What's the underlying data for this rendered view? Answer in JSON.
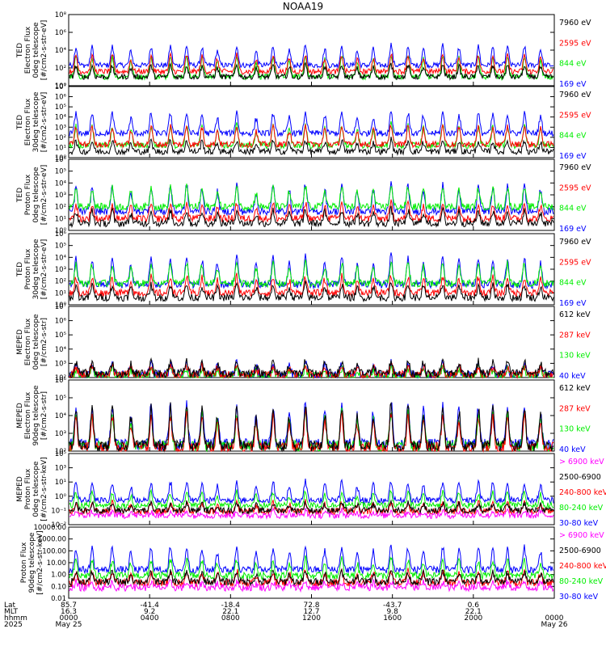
{
  "title": "NOAA19",
  "colors": {
    "blue": "#0000ff",
    "red": "#ff0000",
    "green": "#00ee00",
    "black": "#000000",
    "magenta": "#ff00ff"
  },
  "chart_data": [
    {
      "type": "line",
      "ylabel": [
        "TED",
        "Electron Flux",
        "0deg telescope",
        "[#/cm2-s-str-eV]"
      ],
      "ytick_labels": [
        "10⁰",
        "10²",
        "10⁴",
        "10⁶",
        "10⁸"
      ],
      "ylim": [
        0,
        8
      ],
      "log_scale": true,
      "series": [
        {
          "name": "7960 eV",
          "color": "#000000",
          "baseline": 1.0,
          "spread": 1.4
        },
        {
          "name": "2595 eV",
          "color": "#ff0000",
          "baseline": 1.6,
          "spread": 2.0
        },
        {
          "name": "844 eV",
          "color": "#00ee00",
          "baseline": 1.0,
          "spread": 2.6
        },
        {
          "name": "169 eV",
          "color": "#0000ff",
          "baseline": 2.3,
          "spread": 2.4
        }
      ]
    },
    {
      "type": "line",
      "ylabel": [
        "TED",
        "Electron Flux",
        "30deg telescope",
        "[#/cm2-s-str-eV]"
      ],
      "ytick_labels": [
        "10⁰",
        "10¹",
        "10²",
        "10³",
        "10⁴",
        "10⁵",
        "10⁶",
        "10⁷"
      ],
      "ylim": [
        0,
        7
      ],
      "log_scale": true,
      "series": [
        {
          "name": "7960 eV",
          "color": "#000000",
          "baseline": 0.6,
          "spread": 1.2
        },
        {
          "name": "2595 eV",
          "color": "#ff0000",
          "baseline": 1.3,
          "spread": 2.0
        },
        {
          "name": "844 eV",
          "color": "#00ee00",
          "baseline": 1.2,
          "spread": 2.2
        },
        {
          "name": "169 eV",
          "color": "#0000ff",
          "baseline": 2.4,
          "spread": 2.2
        }
      ]
    },
    {
      "type": "line",
      "ylabel": [
        "TED",
        "Proton Flux",
        "0deg telescope",
        "[#/cm2-s-str-eV]"
      ],
      "ytick_labels": [
        "10⁰",
        "10¹",
        "10²",
        "10³",
        "10⁴",
        "10⁵",
        "10⁶"
      ],
      "ylim": [
        0,
        6
      ],
      "log_scale": true,
      "series": [
        {
          "name": "7960 eV",
          "color": "#000000",
          "baseline": 0.6,
          "spread": 1.2
        },
        {
          "name": "2595 eV",
          "color": "#ff0000",
          "baseline": 1.0,
          "spread": 1.4
        },
        {
          "name": "844 eV",
          "color": "#00ee00",
          "baseline": 2.0,
          "spread": 1.8
        },
        {
          "name": "169 eV",
          "color": "#0000ff",
          "baseline": 1.6,
          "spread": 2.4
        }
      ]
    },
    {
      "type": "line",
      "ylabel": [
        "TED",
        "Proton Flux",
        "30deg telescope",
        "[#/cm2-s-str-eV]"
      ],
      "ytick_labels": [
        "10⁰",
        "10¹",
        "10²",
        "10³",
        "10⁴",
        "10⁵",
        "10⁶"
      ],
      "ylim": [
        0,
        6
      ],
      "log_scale": true,
      "series": [
        {
          "name": "7960 eV",
          "color": "#000000",
          "baseline": 0.6,
          "spread": 1.2
        },
        {
          "name": "2595 eV",
          "color": "#ff0000",
          "baseline": 1.0,
          "spread": 1.5
        },
        {
          "name": "844 eV",
          "color": "#00ee00",
          "baseline": 1.8,
          "spread": 1.9
        },
        {
          "name": "169 eV",
          "color": "#0000ff",
          "baseline": 1.7,
          "spread": 2.5
        }
      ]
    },
    {
      "type": "line",
      "ylabel": [
        "MEPED",
        "Electron Flux",
        "0deg telescope",
        "[#/cm2-s-str]"
      ],
      "ytick_labels": [
        "10²",
        "10³",
        "10⁴",
        "10⁵",
        "10⁶",
        "10⁷"
      ],
      "ylim": [
        2,
        7
      ],
      "log_scale": true,
      "series": [
        {
          "name": "612 keV",
          "color": "#000000",
          "baseline": 2.3,
          "spread": 0.9
        },
        {
          "name": "287 keV",
          "color": "#ff0000",
          "baseline": 2.2,
          "spread": 0.7
        },
        {
          "name": "130 keV",
          "color": "#00ee00",
          "baseline": 2.1,
          "spread": 0.6
        },
        {
          "name": "40 keV",
          "color": "#0000ff",
          "baseline": 2.2,
          "spread": 0.9
        }
      ]
    },
    {
      "type": "line",
      "ylabel": [
        "MEPED",
        "Electron Flux",
        "90deg telescope",
        "[#/cm2-s-str]"
      ],
      "ytick_labels": [
        "10²",
        "10³",
        "10⁴",
        "10⁵",
        "10⁶"
      ],
      "ylim": [
        2,
        6
      ],
      "log_scale": true,
      "series": [
        {
          "name": "612 keV",
          "color": "#000000",
          "baseline": 2.3,
          "spread": 2.4
        },
        {
          "name": "287 keV",
          "color": "#ff0000",
          "baseline": 2.2,
          "spread": 2.0
        },
        {
          "name": "130 keV",
          "color": "#00ee00",
          "baseline": 2.3,
          "spread": 2.0
        },
        {
          "name": "40 keV",
          "color": "#0000ff",
          "baseline": 2.4,
          "spread": 2.4
        }
      ]
    },
    {
      "type": "line",
      "ylabel": [
        "MEPED",
        "Proton Flux",
        "0deg telescope",
        "[#/cm2-s-str-keV]"
      ],
      "ytick_labels": [
        "10⁻²",
        "10⁻¹",
        "10⁰",
        "10¹",
        "10³",
        "10⁵"
      ],
      "ylim": [
        -2,
        5
      ],
      "log_scale": true,
      "series": [
        {
          "name": "> 6900 keV",
          "color": "#ff00ff",
          "baseline": -1.1,
          "spread": 0.5
        },
        {
          "name": "2500-6900",
          "color": "#000000",
          "baseline": -0.6,
          "spread": 0.8
        },
        {
          "name": "240-800 keV",
          "color": "#ff0000",
          "baseline": -0.7,
          "spread": 1.0
        },
        {
          "name": "80-240 keV",
          "color": "#00ee00",
          "baseline": -0.1,
          "spread": 1.4
        },
        {
          "name": "30-80 keV",
          "color": "#0000ff",
          "baseline": 0.4,
          "spread": 2.0
        }
      ]
    },
    {
      "type": "line",
      "ylabel": [
        "Proton Flux",
        "90deg telescope",
        "[#/cm2-s-str-keV]"
      ],
      "ytick_labels": [
        "0.01",
        "0.10",
        "1.00",
        "10.00",
        "100.00",
        "1000.00",
        "10000.00"
      ],
      "ylim": [
        -2,
        4
      ],
      "log_scale": true,
      "series": [
        {
          "name": "> 6900 keV",
          "color": "#ff00ff",
          "baseline": -1.1,
          "spread": 0.5
        },
        {
          "name": "2500-6900",
          "color": "#000000",
          "baseline": -0.6,
          "spread": 0.9
        },
        {
          "name": "240-800 keV",
          "color": "#ff0000",
          "baseline": -0.7,
          "spread": 1.1
        },
        {
          "name": "80-240 keV",
          "color": "#00ee00",
          "baseline": -0.1,
          "spread": 1.5
        },
        {
          "name": "30-80 keV",
          "color": "#0000ff",
          "baseline": 0.4,
          "spread": 2.1
        }
      ]
    }
  ],
  "x_axis": {
    "row_labels": [
      "Lat",
      "MLT",
      "hhmm",
      "2025"
    ],
    "ticks": [
      {
        "lat": "85.7",
        "mlt": "16.3",
        "hhmm": "0000",
        "date": "May 25"
      },
      {
        "lat": "-41.4",
        "mlt": "9.2",
        "hhmm": "0400",
        "date": ""
      },
      {
        "lat": "-18.4",
        "mlt": "22.1",
        "hhmm": "0800",
        "date": ""
      },
      {
        "lat": "72.8",
        "mlt": "12.7",
        "hhmm": "1200",
        "date": ""
      },
      {
        "lat": "-43.7",
        "mlt": "9.8",
        "hhmm": "1600",
        "date": ""
      },
      {
        "lat": "0.6",
        "mlt": "22.1",
        "hhmm": "2000",
        "date": ""
      },
      {
        "lat": "",
        "mlt": "",
        "hhmm": "0000",
        "date": "May 26"
      }
    ]
  }
}
